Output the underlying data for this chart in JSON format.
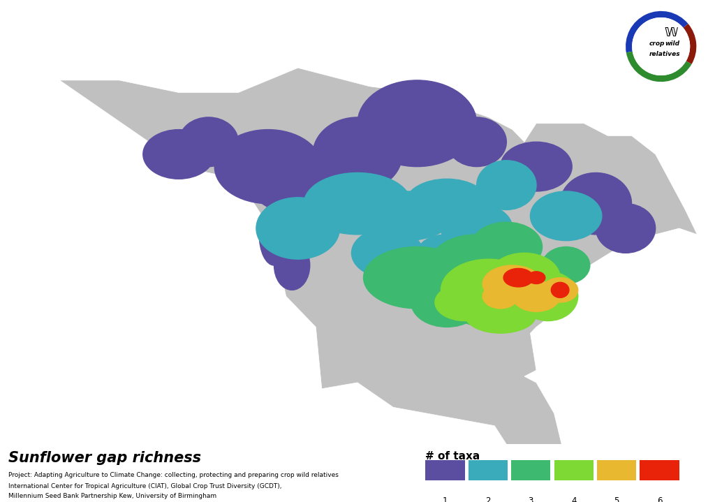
{
  "title": "Sunflower gap richness",
  "subtitle_line1": "Project: Adapting Agriculture to Climate Change: collecting, protecting and preparing crop wild relatives",
  "subtitle_line2": "International Center for Tropical Agriculture (CIAT), Global Crop Trust Diversity (GCDT),",
  "subtitle_line3": "Millennium Seed Bank Partnership Kew, University of Birmingham",
  "legend_title": "# of taxa",
  "legend_labels": [
    "1",
    "2",
    "3",
    "4",
    "5",
    "6"
  ],
  "legend_colors": [
    "#5b4ea0",
    "#3aabba",
    "#3dba6f",
    "#7ed934",
    "#e8b830",
    "#e8230a"
  ],
  "background_color": "#ffffff",
  "land_color": "#c0c0c0",
  "water_color": "#ffffff",
  "logo_colors": {
    "top_arc": "#1a3ab5",
    "left_arc": "#2e8b2e",
    "bottom_arc": "#8b1a0a"
  },
  "map_extent": [
    -170,
    -50,
    15,
    85
  ],
  "figsize": [
    10.24,
    7.19
  ],
  "dpi": 100
}
